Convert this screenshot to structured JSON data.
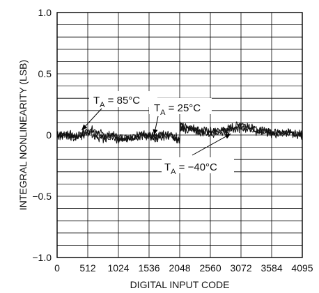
{
  "chart_data": {
    "type": "line",
    "title": "",
    "xlabel": "DIGITAL INPUT CODE",
    "ylabel": "INTEGRAL NONLINEARITY (LSB)",
    "xlim": [
      0,
      4095
    ],
    "ylim": [
      -1.0,
      1.0
    ],
    "x_ticks": [
      0,
      512,
      1024,
      1536,
      2048,
      2560,
      3072,
      3584,
      4095
    ],
    "x_tick_labels": [
      "0",
      "512",
      "1024",
      "1536",
      "2048",
      "2560",
      "3072",
      "3584",
      "4095"
    ],
    "y_ticks": [
      -1.0,
      -0.5,
      0,
      0.5,
      1.0
    ],
    "y_tick_labels": [
      "−1.0",
      "−0.5",
      "0",
      "0.5",
      "1.0"
    ],
    "grid": true,
    "x_minor_divisions": 8,
    "y_minor_divisions": 20,
    "series": [
      {
        "name": "T_A = 85°C",
        "x": [
          0,
          100,
          200,
          300,
          400,
          512,
          600,
          700,
          800,
          900,
          1024,
          1150,
          1280,
          1400,
          1536,
          1650,
          1780,
          1900,
          2000,
          2047,
          2048,
          2100,
          2200,
          2300,
          2400,
          2560,
          2700,
          2850,
          3000,
          3072,
          3150,
          3250,
          3350,
          3450,
          3584,
          3700,
          3850,
          4000,
          4095
        ],
        "y": [
          0.01,
          0.0,
          0.01,
          -0.02,
          0.0,
          0.05,
          0.04,
          0.02,
          -0.01,
          0.01,
          -0.02,
          -0.01,
          -0.02,
          0.01,
          0.0,
          -0.01,
          0.0,
          0.01,
          -0.02,
          -0.03,
          0.09,
          0.08,
          0.07,
          0.05,
          0.04,
          0.03,
          0.04,
          0.05,
          0.08,
          0.1,
          0.08,
          0.06,
          0.04,
          0.05,
          0.03,
          0.02,
          0.03,
          0.02,
          0.01
        ]
      },
      {
        "name": "T_A = 25°C",
        "x": [
          0,
          100,
          200,
          300,
          400,
          512,
          600,
          700,
          800,
          900,
          1024,
          1150,
          1280,
          1400,
          1536,
          1650,
          1780,
          1900,
          2000,
          2047,
          2048,
          2100,
          2200,
          2300,
          2400,
          2560,
          2700,
          2850,
          3000,
          3072,
          3150,
          3250,
          3350,
          3450,
          3584,
          3700,
          3850,
          4000,
          4095
        ],
        "y": [
          0.0,
          0.01,
          -0.01,
          -0.01,
          0.01,
          0.03,
          0.02,
          0.0,
          -0.02,
          0.0,
          -0.03,
          -0.02,
          -0.01,
          0.0,
          -0.01,
          -0.02,
          0.01,
          0.0,
          -0.03,
          -0.05,
          0.07,
          0.06,
          0.06,
          0.04,
          0.03,
          0.02,
          0.03,
          0.05,
          0.06,
          0.08,
          0.07,
          0.05,
          0.03,
          0.04,
          0.02,
          0.02,
          0.02,
          0.01,
          0.0
        ]
      },
      {
        "name": "T_A = −40°C",
        "x": [
          0,
          100,
          200,
          300,
          400,
          512,
          600,
          700,
          800,
          900,
          1024,
          1150,
          1280,
          1400,
          1536,
          1650,
          1780,
          1900,
          2000,
          2047,
          2048,
          2100,
          2200,
          2300,
          2400,
          2560,
          2700,
          2850,
          3000,
          3072,
          3150,
          3250,
          3350,
          3450,
          3584,
          3700,
          3850,
          4000,
          4095
        ],
        "y": [
          0.0,
          -0.01,
          0.0,
          -0.03,
          -0.01,
          0.02,
          0.0,
          -0.02,
          -0.04,
          -0.02,
          -0.05,
          -0.03,
          -0.02,
          -0.01,
          -0.02,
          -0.03,
          -0.01,
          -0.02,
          -0.04,
          -0.06,
          0.05,
          0.05,
          0.04,
          0.03,
          0.02,
          0.01,
          0.02,
          0.03,
          0.05,
          0.06,
          0.05,
          0.04,
          0.02,
          0.03,
          0.01,
          0.01,
          0.01,
          0.0,
          -0.01
        ]
      }
    ],
    "annotations": [
      {
        "main": "T",
        "sub": "A",
        "rest": " = 85°C",
        "arrow_to": {
          "x": 410,
          "y": 0.04
        }
      },
      {
        "main": "T",
        "sub": "A",
        "rest": " = 25°C",
        "arrow_to": {
          "x": 1620,
          "y": 0.0
        }
      },
      {
        "main": "T",
        "sub": "A",
        "rest": " = −40°C",
        "arrow_to": {
          "x": 2900,
          "y": 0.01
        }
      }
    ]
  }
}
